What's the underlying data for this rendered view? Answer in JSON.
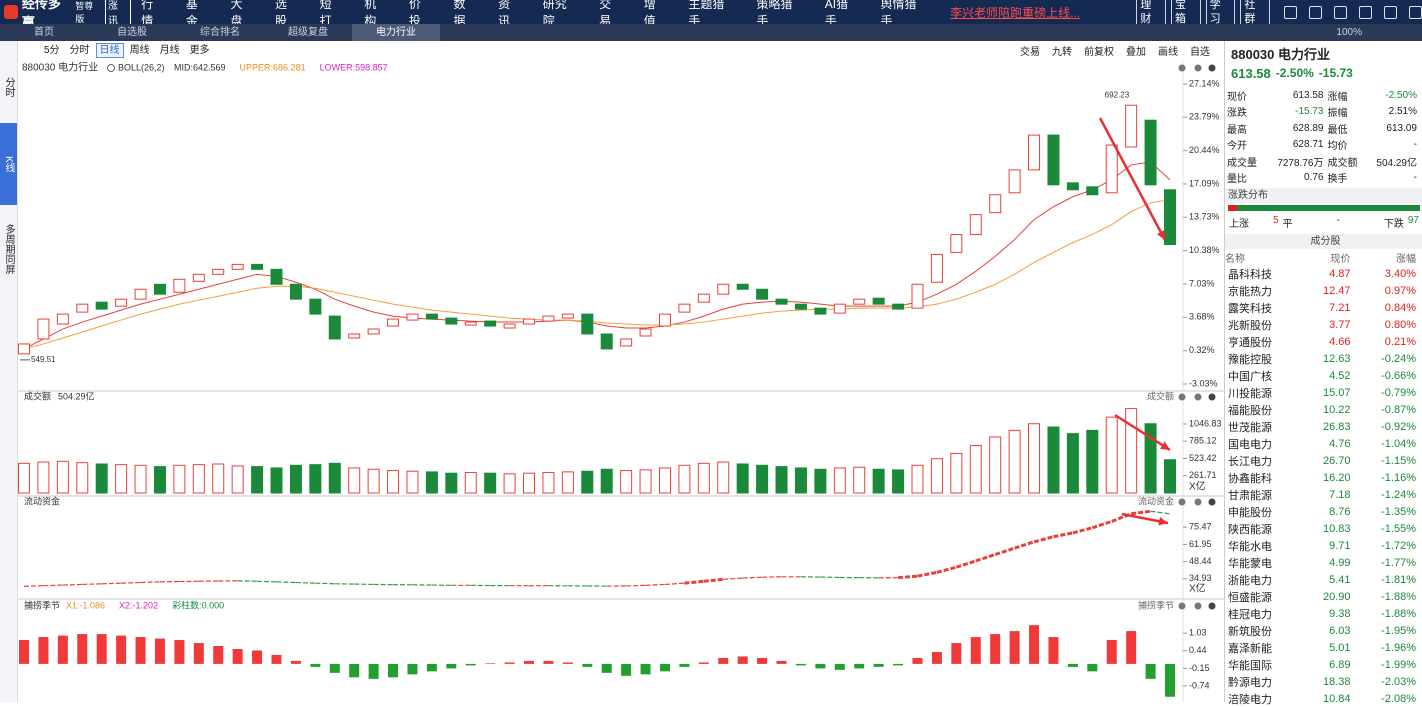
{
  "nav": {
    "logo": "经传多赢",
    "edition": "智尊版",
    "badge": "涨讯",
    "items": [
      "行情",
      "基金",
      "大盘",
      "选股",
      "短打",
      "机构",
      "价投",
      "数据",
      "资讯",
      "研究院",
      "交易",
      "增值",
      "主题猎手",
      "策略猎手",
      "AI猎手",
      "舆情猎手"
    ],
    "promo": "李兴老师陪跑重磅上线...",
    "buttons": [
      "理财",
      "宝箱",
      "学习",
      "社群"
    ]
  },
  "tabs": {
    "items": [
      "首页",
      "自选股",
      "综合排名",
      "超级复盘",
      "电力行业"
    ],
    "zoom": "100%"
  },
  "sidebar": [
    "分时",
    "K线",
    "多周期同屏"
  ],
  "toolbar": {
    "periods": [
      "5分",
      "分时",
      "日线",
      "周线",
      "月线",
      "更多"
    ],
    "active": 2,
    "tools": [
      "交易",
      "九转",
      "前复权",
      "叠加",
      "画线",
      "自选"
    ]
  },
  "chart_data": [
    {
      "type": "candlestick",
      "title": "880030 电力行业",
      "indicator": "BOLL(26,2)",
      "legend": [
        {
          "name": "MID:642.569",
          "color": "#333333"
        },
        {
          "name": "UPPER:686.281",
          "color": "#e8902a"
        },
        {
          "name": "LOWER:598.857",
          "color": "#e020c0"
        }
      ],
      "open": [
        0.0,
        1.5,
        3.0,
        4.2,
        5.2,
        4.8,
        5.5,
        7.0,
        6.2,
        7.3,
        8.0,
        8.5,
        9.0,
        8.5,
        7.0,
        5.5,
        3.8,
        1.6,
        2.0,
        2.8,
        3.4,
        4.0,
        3.6,
        2.9,
        3.3,
        2.6,
        3.0,
        3.3,
        3.6,
        4.0,
        2.0,
        0.8,
        1.8,
        2.8,
        4.2,
        5.2,
        6.0,
        7.0,
        6.5,
        5.5,
        5.0,
        4.6,
        4.1,
        5.0,
        5.6,
        5.0,
        4.6,
        7.2,
        10.2,
        12.0,
        14.2,
        16.2,
        18.5,
        22.0,
        17.2,
        16.8,
        16.2,
        20.8,
        23.5,
        16.5
      ],
      "close": [
        1.0,
        3.5,
        4.0,
        5.0,
        4.5,
        5.5,
        6.5,
        6.0,
        7.5,
        8.0,
        8.5,
        9.0,
        8.5,
        7.0,
        5.5,
        4.0,
        1.5,
        2.0,
        2.5,
        3.5,
        4.0,
        3.5,
        3.0,
        3.2,
        2.8,
        3.0,
        3.5,
        3.8,
        4.0,
        2.0,
        0.5,
        1.5,
        2.5,
        4.0,
        5.0,
        6.0,
        7.0,
        6.5,
        5.5,
        5.0,
        4.5,
        4.0,
        5.0,
        5.5,
        5.0,
        4.5,
        7.0,
        10.0,
        12.0,
        14.0,
        16.0,
        18.5,
        22.0,
        17.0,
        16.5,
        16.0,
        21.0,
        25.0,
        17.0,
        11.0
      ],
      "lines": [
        {
          "color": "#e8403a",
          "values": [
            0.5,
            1.5,
            2.5,
            3.2,
            3.8,
            4.4,
            5.0,
            5.5,
            6.0,
            6.5,
            7.0,
            7.5,
            8.0,
            7.8,
            7.2,
            6.5,
            5.5,
            4.8,
            4.2,
            3.8,
            3.6,
            3.5,
            3.4,
            3.3,
            3.2,
            3.2,
            3.2,
            3.3,
            3.4,
            3.2,
            2.8,
            2.6,
            2.6,
            2.8,
            3.2,
            3.8,
            4.5,
            5.0,
            5.2,
            5.3,
            5.2,
            5.0,
            4.8,
            4.8,
            4.8,
            4.8,
            5.2,
            6.0,
            7.0,
            8.3,
            9.8,
            11.5,
            13.5,
            14.8,
            15.8,
            16.5,
            17.5,
            19.0,
            19.3,
            17.5
          ]
        },
        {
          "color": "#f0a040",
          "values": [
            0.5,
            1.0,
            1.6,
            2.2,
            2.8,
            3.4,
            4.0,
            4.5,
            5.0,
            5.4,
            5.8,
            6.2,
            6.6,
            6.8,
            6.8,
            6.6,
            6.2,
            5.8,
            5.4,
            5.0,
            4.7,
            4.4,
            4.2,
            4.0,
            3.8,
            3.6,
            3.5,
            3.4,
            3.4,
            3.3,
            3.1,
            3.0,
            2.9,
            2.9,
            3.0,
            3.2,
            3.5,
            3.8,
            4.1,
            4.3,
            4.4,
            4.5,
            4.5,
            4.6,
            4.6,
            4.6,
            4.7,
            5.0,
            5.5,
            6.2,
            7.0,
            8.0,
            9.2,
            10.2,
            11.2,
            12.0,
            13.0,
            14.3,
            15.2,
            15.5
          ]
        }
      ],
      "up_color": "#e8403a",
      "down_color": "#1a8a3a",
      "annotations": [
        {
          "label": "692.23",
          "at": 57
        },
        {
          "label": "549.51",
          "at": 0
        }
      ],
      "ylim": [
        -3.43,
        27.74
      ],
      "yticks": [
        {
          "value": 27.14,
          "label": "27.14%"
        },
        {
          "value": 23.79,
          "label": "23.79%"
        },
        {
          "value": 20.44,
          "label": "20.44%"
        },
        {
          "value": 17.09,
          "label": "17.09%"
        },
        {
          "value": 13.73,
          "label": "13.73%"
        },
        {
          "value": 10.38,
          "label": "10.38%"
        },
        {
          "value": 7.03,
          "label": "7.03%"
        },
        {
          "value": 3.68,
          "label": "3.68%"
        },
        {
          "value": 0.32,
          "label": "0.32%"
        },
        {
          "value": -3.03,
          "label": "-3.03%"
        }
      ]
    },
    {
      "type": "bar",
      "title": "成交额",
      "value_label": "504.29亿",
      "right_title": "成交额",
      "unit": "X亿",
      "values": [
        450,
        470,
        480,
        460,
        440,
        430,
        420,
        400,
        420,
        430,
        440,
        410,
        400,
        380,
        420,
        430,
        450,
        380,
        360,
        340,
        330,
        320,
        300,
        310,
        300,
        290,
        300,
        310,
        320,
        330,
        360,
        340,
        350,
        380,
        420,
        450,
        470,
        440,
        420,
        400,
        380,
        360,
        380,
        390,
        360,
        350,
        420,
        520,
        600,
        720,
        850,
        950,
        1050,
        1000,
        900,
        950,
        1150,
        1280,
        1050,
        504.29
      ],
      "ylim": [
        0,
        1410
      ],
      "yticks": [
        261.71,
        523.42,
        785.12,
        1046.83
      ]
    },
    {
      "type": "line",
      "title": "流动资金",
      "right_title": "流动资金",
      "unit": "X亿",
      "values": [
        29,
        29.5,
        30,
        30.5,
        31,
        31.5,
        32,
        32.5,
        32.8,
        33,
        33.2,
        33.3,
        33,
        32.5,
        32,
        31.5,
        31,
        30.8,
        30.5,
        30.3,
        30.2,
        30,
        29.8,
        29.8,
        29.6,
        29.5,
        29.5,
        29.5,
        29.4,
        29.3,
        29.2,
        29.3,
        29.8,
        30.5,
        31.5,
        33,
        34.5,
        35.5,
        36.2,
        36.5,
        36.5,
        36.3,
        36,
        35.8,
        35.7,
        35.8,
        37,
        40,
        44,
        49,
        54,
        59,
        64,
        68,
        71,
        75,
        80,
        86,
        88,
        86
      ],
      "ylim": [
        22.2,
        92.9
      ],
      "yticks": [
        34.93,
        48.44,
        61.95,
        75.47
      ]
    },
    {
      "type": "bar",
      "title": "捕捞季节",
      "right_title": "捕捞季节",
      "legend": [
        {
          "name": "X1:-1.086",
          "color": "#e8902a"
        },
        {
          "name": "X2:-1.202",
          "color": "#e020c0"
        },
        {
          "name": "彩柱数:0.000",
          "color": "#1a8a3a"
        }
      ],
      "values": [
        0.8,
        0.9,
        0.95,
        1.0,
        1.0,
        0.95,
        0.9,
        0.85,
        0.8,
        0.7,
        0.6,
        0.5,
        0.45,
        0.3,
        0.1,
        -0.1,
        -0.3,
        -0.45,
        -0.5,
        -0.45,
        -0.35,
        -0.25,
        -0.15,
        -0.05,
        0.02,
        0.05,
        0.1,
        0.1,
        0.05,
        -0.1,
        -0.3,
        -0.4,
        -0.35,
        -0.25,
        -0.1,
        0.05,
        0.2,
        0.25,
        0.2,
        0.1,
        -0.05,
        -0.15,
        -0.2,
        -0.15,
        -0.1,
        -0.05,
        0.2,
        0.4,
        0.7,
        0.9,
        1.0,
        1.1,
        1.3,
        0.9,
        -0.1,
        -0.25,
        0.8,
        1.1,
        -0.5,
        -1.1
      ],
      "ylim": [
        -1.21,
        1.74
      ],
      "yticks": [
        1.03,
        0.44,
        -0.15,
        -0.74
      ]
    }
  ],
  "quote": {
    "code": "880030 电力行业",
    "price": "613.58",
    "change_pct": "-2.50%",
    "change": "-15.73",
    "rows": [
      [
        "现价",
        "613.58",
        "涨幅",
        "-2.50%"
      ],
      [
        "涨跌",
        "-15.73",
        "振幅",
        "2.51%"
      ],
      [
        "最高",
        "628.89",
        "最低",
        "613.09"
      ],
      [
        "今开",
        "628.71",
        "均价",
        "-"
      ],
      [
        "成交量",
        "7278.76万",
        "成交额",
        "504.29亿"
      ],
      [
        "量比",
        "0.76",
        "换手",
        "-"
      ]
    ],
    "dist_title": "涨跌分布",
    "dist": [
      "上涨",
      "5",
      "平",
      "-",
      "下跌",
      "97"
    ],
    "stocks_title": "成分股",
    "stocks_header": [
      "名称",
      "现价",
      "涨幅"
    ],
    "stocks": [
      [
        "晶科科技",
        "4.87",
        "3.40%"
      ],
      [
        "京能热力",
        "12.47",
        "0.97%"
      ],
      [
        "露笑科技",
        "7.21",
        "0.84%"
      ],
      [
        "兆新股份",
        "3.77",
        "0.80%"
      ],
      [
        "亨通股份",
        "4.66",
        "0.21%"
      ],
      [
        "豫能控股",
        "12.63",
        "-0.24%"
      ],
      [
        "中国广核",
        "4.52",
        "-0.66%"
      ],
      [
        "川投能源",
        "15.07",
        "-0.79%"
      ],
      [
        "福能股份",
        "10.22",
        "-0.87%"
      ],
      [
        "世茂能源",
        "26.83",
        "-0.92%"
      ],
      [
        "国电电力",
        "4.76",
        "-1.04%"
      ],
      [
        "长江电力",
        "26.70",
        "-1.15%"
      ],
      [
        "协鑫能科",
        "16.20",
        "-1.16%"
      ],
      [
        "甘肃能源",
        "7.18",
        "-1.24%"
      ],
      [
        "申能股份",
        "8.76",
        "-1.35%"
      ],
      [
        "陕西能源",
        "10.83",
        "-1.55%"
      ],
      [
        "华能水电",
        "9.71",
        "-1.72%"
      ],
      [
        "华能蒙电",
        "4.99",
        "-1.77%"
      ],
      [
        "浙能电力",
        "5.41",
        "-1.81%"
      ],
      [
        "恒盛能源",
        "20.90",
        "-1.88%"
      ],
      [
        "桂冠电力",
        "9.38",
        "-1.88%"
      ],
      [
        "新筑股份",
        "6.03",
        "-1.95%"
      ],
      [
        "嘉泽新能",
        "5.01",
        "-1.96%"
      ],
      [
        "华能国际",
        "6.89",
        "-1.99%"
      ],
      [
        "黔源电力",
        "18.38",
        "-2.03%"
      ],
      [
        "涪陵电力",
        "10.84",
        "-2.08%"
      ]
    ]
  }
}
